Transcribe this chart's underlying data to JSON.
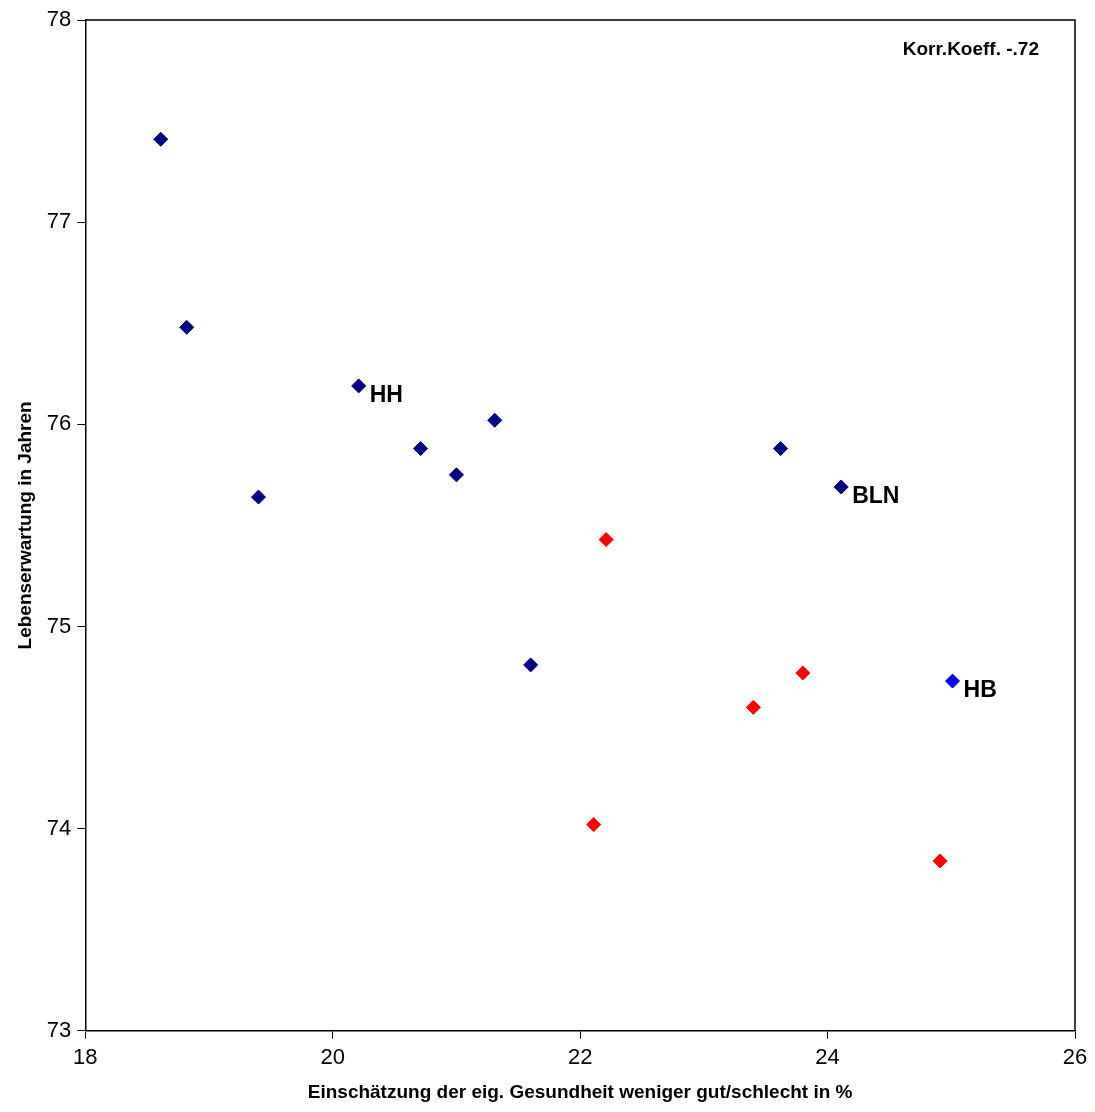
{
  "chart_data": {
    "type": "scatter",
    "xlabel": "Einschätzung der eig. Gesundheit weniger gut/schlecht in %",
    "ylabel": "Lebenserwartung in Jahren",
    "xlim": [
      18,
      26
    ],
    "xticks": [
      18,
      20,
      22,
      24,
      26
    ],
    "ylim": [
      73,
      78
    ],
    "yticks": [
      73,
      74,
      75,
      76,
      77,
      78
    ],
    "grid": false,
    "legend": false,
    "marker": "diamond",
    "series": [
      {
        "color": "#000080",
        "x": [
          18.61,
          18.82,
          19.4,
          20.21,
          20.71,
          21.0,
          21.31,
          21.6,
          23.62,
          24.11
        ],
        "values": [
          77.41,
          76.48,
          75.64,
          76.19,
          75.88,
          75.75,
          76.02,
          74.81,
          75.88,
          75.69
        ]
      },
      {
        "color": "#0000ff",
        "x": [
          25.01
        ],
        "values": [
          74.73
        ]
      },
      {
        "color": "#ff0000",
        "x": [
          22.21,
          22.11,
          23.4,
          23.8,
          24.91
        ],
        "values": [
          75.43,
          74.02,
          74.6,
          74.77,
          73.84
        ]
      }
    ],
    "annotations": [
      "Korr.Koeff. -.72",
      {
        "text": "HH",
        "x": 20.21,
        "y": 76.19
      },
      {
        "text": "BLN",
        "x": 24.11,
        "y": 75.69
      },
      {
        "text": "HB",
        "x": 25.01,
        "y": 74.73
      }
    ]
  }
}
